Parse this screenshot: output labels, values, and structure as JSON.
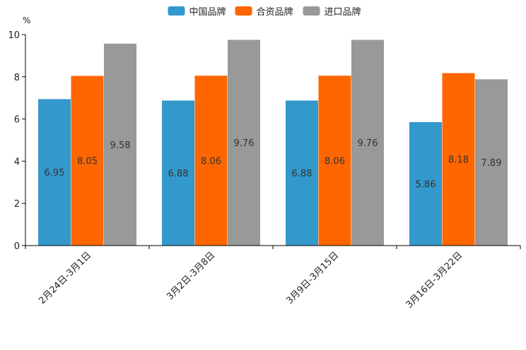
{
  "chart_data": {
    "type": "bar",
    "title": "",
    "ylabel": "%",
    "xlabel": "",
    "ylim": [
      0,
      10
    ],
    "yticks": [
      0,
      2,
      4,
      6,
      8,
      10
    ],
    "grid": false,
    "legend_position": "top-center",
    "categories": [
      "2月24日-3月1日",
      "3月2日-3月8日",
      "3月9日-3月15日",
      "3月16日-3月22日"
    ],
    "series": [
      {
        "name": "中国品牌",
        "color": "#3399cc",
        "values": [
          6.95,
          6.88,
          6.88,
          5.86
        ]
      },
      {
        "name": "合资品牌",
        "color": "#ff6600",
        "values": [
          8.05,
          8.06,
          8.06,
          8.18
        ]
      },
      {
        "name": "进口品牌",
        "color": "#999999",
        "values": [
          9.58,
          9.76,
          9.76,
          7.89
        ]
      }
    ]
  }
}
